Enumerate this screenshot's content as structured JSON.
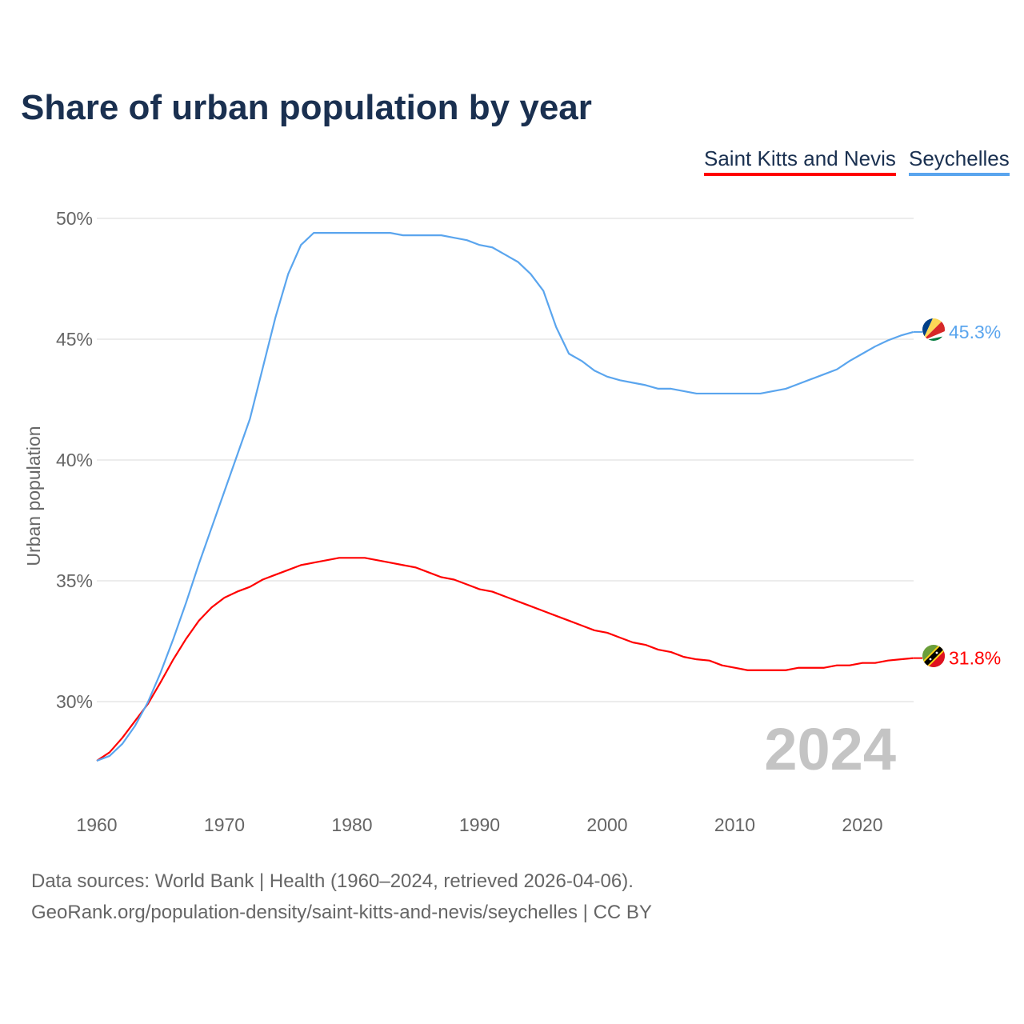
{
  "chart_data": {
    "type": "line",
    "title": "Share of urban population by year",
    "xlabel": "",
    "ylabel": "Urban population",
    "xlim": [
      1960,
      2024
    ],
    "ylim": [
      27,
      51
    ],
    "x_ticks": [
      1960,
      1970,
      1980,
      1990,
      2000,
      2010,
      2020
    ],
    "y_ticks": [
      30,
      35,
      40,
      45,
      50
    ],
    "y_tick_labels": [
      "30%",
      "35%",
      "40%",
      "45%",
      "50%"
    ],
    "grid": true,
    "legend_position": "top-right",
    "year_watermark": "2024",
    "x": [
      1960,
      1961,
      1962,
      1963,
      1964,
      1965,
      1966,
      1967,
      1968,
      1969,
      1970,
      1971,
      1972,
      1973,
      1974,
      1975,
      1976,
      1977,
      1978,
      1979,
      1980,
      1981,
      1982,
      1983,
      1984,
      1985,
      1986,
      1987,
      1988,
      1989,
      1990,
      1991,
      1992,
      1993,
      1994,
      1995,
      1996,
      1997,
      1998,
      1999,
      2000,
      2001,
      2002,
      2003,
      2004,
      2005,
      2006,
      2007,
      2008,
      2009,
      2010,
      2011,
      2012,
      2013,
      2014,
      2015,
      2016,
      2017,
      2018,
      2019,
      2020,
      2021,
      2022,
      2023,
      2024
    ],
    "series": [
      {
        "name": "Saint Kitts and Nevis",
        "color": "#ff0000",
        "end_label": "31.8%",
        "values": [
          27.55,
          27.9,
          28.5,
          29.2,
          29.9,
          30.8,
          31.75,
          32.6,
          33.35,
          33.9,
          34.3,
          34.55,
          34.75,
          35.05,
          35.25,
          35.45,
          35.65,
          35.75,
          35.85,
          35.95,
          35.95,
          35.95,
          35.85,
          35.75,
          35.65,
          35.55,
          35.35,
          35.15,
          35.05,
          34.85,
          34.65,
          34.55,
          34.35,
          34.15,
          33.95,
          33.75,
          33.55,
          33.35,
          33.15,
          32.95,
          32.85,
          32.65,
          32.45,
          32.35,
          32.15,
          32.05,
          31.85,
          31.75,
          31.7,
          31.5,
          31.4,
          31.3,
          31.3,
          31.3,
          31.3,
          31.4,
          31.4,
          31.4,
          31.5,
          31.5,
          31.6,
          31.6,
          31.7,
          31.75,
          31.8
        ]
      },
      {
        "name": "Seychelles",
        "color": "#5aa5ee",
        "end_label": "45.3%",
        "values": [
          27.55,
          27.75,
          28.25,
          29.0,
          29.97,
          31.2,
          32.6,
          34.1,
          35.7,
          37.2,
          38.7,
          40.2,
          41.7,
          43.8,
          45.9,
          47.7,
          48.9,
          49.4,
          49.4,
          49.4,
          49.4,
          49.4,
          49.4,
          49.4,
          49.3,
          49.3,
          49.3,
          49.3,
          49.2,
          49.1,
          48.9,
          48.8,
          48.5,
          48.2,
          47.7,
          47.0,
          45.5,
          44.4,
          44.1,
          43.7,
          43.45,
          43.3,
          43.2,
          43.1,
          42.95,
          42.95,
          42.85,
          42.75,
          42.75,
          42.75,
          42.75,
          42.75,
          42.75,
          42.85,
          42.95,
          43.15,
          43.35,
          43.55,
          43.75,
          44.1,
          44.4,
          44.7,
          44.95,
          45.15,
          45.3
        ]
      }
    ]
  },
  "footer": {
    "line1": "Data sources: World Bank | Health (1960–2024, retrieved 2026-04-06).",
    "line2": "GeoRank.org/population-density/saint-kitts-and-nevis/seychelles | CC BY"
  }
}
